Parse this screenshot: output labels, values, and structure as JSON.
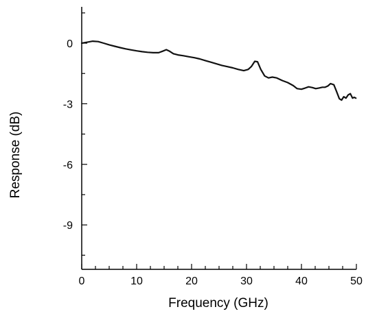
{
  "chart_data": {
    "type": "line",
    "xlabel": "Frequency (GHz)",
    "ylabel": "Response (dB)",
    "xlim": [
      0,
      50
    ],
    "ylim": [
      -11.2,
      1.8
    ],
    "x_ticks": [
      0,
      10,
      20,
      30,
      40,
      50
    ],
    "x_tick_labels": [
      "0",
      "10",
      "20",
      "30",
      "40",
      "50"
    ],
    "y_ticks": [
      0,
      -3,
      -6,
      -9
    ],
    "y_tick_labels": [
      "0",
      "-3",
      "-6",
      "-9"
    ],
    "grid": false,
    "legend": "none",
    "series": [
      {
        "line_color": "#111111",
        "x": [
          0,
          1,
          2,
          3,
          4,
          5,
          6,
          7,
          8,
          9,
          10,
          11,
          12,
          13,
          14,
          14.7,
          15.4,
          16,
          16.7,
          17.5,
          18.5,
          19.5,
          20.5,
          21.5,
          22.5,
          23.5,
          24.5,
          25.5,
          26.5,
          27.5,
          28.5,
          29.5,
          30.3,
          30.9,
          31.5,
          32,
          32.6,
          33.3,
          34,
          34.7,
          35.5,
          36.5,
          37.5,
          38.5,
          39.2,
          40,
          40.7,
          41.3,
          42,
          42.6,
          43.2,
          43.8,
          44.3,
          44.8,
          45.3,
          45.9,
          46.4,
          46.9,
          47.3,
          47.7,
          48.1,
          48.5,
          48.9,
          49.3,
          49.6,
          49.9
        ],
        "y": [
          0.0,
          0.05,
          0.1,
          0.08,
          0.0,
          -0.08,
          -0.15,
          -0.22,
          -0.28,
          -0.33,
          -0.38,
          -0.42,
          -0.45,
          -0.47,
          -0.47,
          -0.4,
          -0.32,
          -0.4,
          -0.52,
          -0.58,
          -0.62,
          -0.67,
          -0.72,
          -0.78,
          -0.86,
          -0.94,
          -1.02,
          -1.1,
          -1.16,
          -1.22,
          -1.3,
          -1.36,
          -1.3,
          -1.15,
          -0.9,
          -0.92,
          -1.3,
          -1.62,
          -1.72,
          -1.68,
          -1.72,
          -1.85,
          -1.95,
          -2.1,
          -2.25,
          -2.28,
          -2.22,
          -2.16,
          -2.2,
          -2.25,
          -2.22,
          -2.18,
          -2.18,
          -2.12,
          -2.0,
          -2.06,
          -2.4,
          -2.75,
          -2.82,
          -2.65,
          -2.72,
          -2.56,
          -2.5,
          -2.72,
          -2.68,
          -2.72
        ]
      }
    ]
  }
}
